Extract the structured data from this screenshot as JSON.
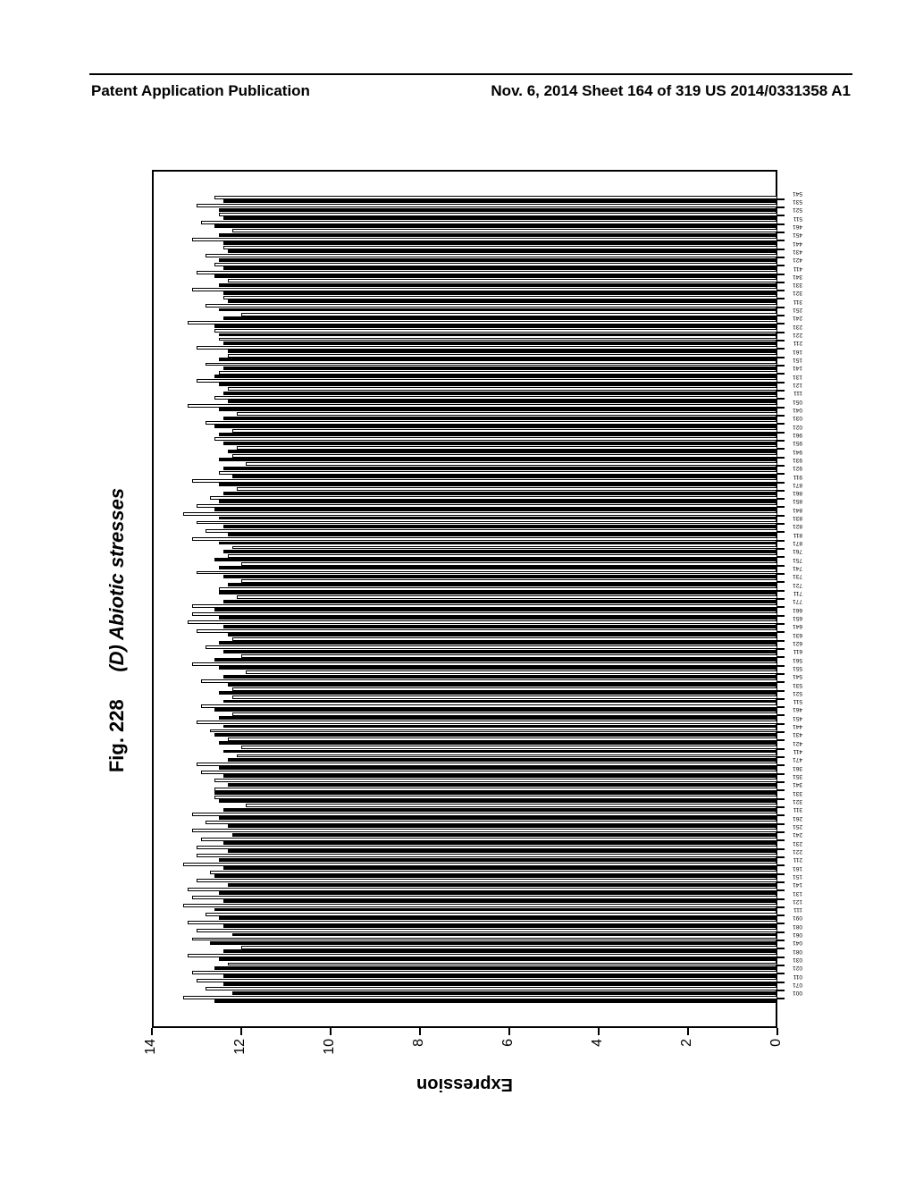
{
  "header": {
    "left": "Patent Application Publication",
    "right": "Nov. 6, 2014  Sheet 164 of 319  US 2014/0331358 A1"
  },
  "figure": {
    "number": "Fig. 228",
    "panel": "(D) Abiotic stresses"
  },
  "chart": {
    "type": "grouped-bar",
    "orientation": "vertical",
    "ylabel": "Expression",
    "ylim": [
      0,
      14
    ],
    "ytick_step": 2,
    "yticks": [
      0,
      2,
      4,
      6,
      8,
      10,
      12,
      14
    ],
    "frame_color": "#000000",
    "background_color": "#ffffff",
    "bar_solid_color": "#000000",
    "bar_hollow_fill": "#ffffff",
    "bar_hollow_stroke": "#000000",
    "bar_group_count": 97,
    "bar_label_fontsize": 6.5,
    "axis_label_fontsize": 20,
    "tick_label_fontsize": 16,
    "xlabel_prefix_base": 0,
    "bars": [
      {
        "cat": "001",
        "solid": 12.6,
        "hollow": 13.3
      },
      {
        "cat": "071",
        "solid": 12.2,
        "hollow": 12.8
      },
      {
        "cat": "011",
        "solid": 12.4,
        "hollow": 13.0
      },
      {
        "cat": "021",
        "solid": 12.4,
        "hollow": 13.1
      },
      {
        "cat": "031",
        "solid": 12.6,
        "hollow": 12.3
      },
      {
        "cat": "081",
        "solid": 12.5,
        "hollow": 13.2
      },
      {
        "cat": "041",
        "solid": 12.4,
        "hollow": 12.0
      },
      {
        "cat": "061",
        "solid": 12.7,
        "hollow": 13.1
      },
      {
        "cat": "081",
        "solid": 12.2,
        "hollow": 13.0
      },
      {
        "cat": "091",
        "solid": 12.4,
        "hollow": 13.2
      },
      {
        "cat": "111",
        "solid": 12.5,
        "hollow": 12.8
      },
      {
        "cat": "121",
        "solid": 12.6,
        "hollow": 13.3
      },
      {
        "cat": "131",
        "solid": 12.4,
        "hollow": 13.1
      },
      {
        "cat": "141",
        "solid": 12.5,
        "hollow": 13.2
      },
      {
        "cat": "151",
        "solid": 12.3,
        "hollow": 13.0
      },
      {
        "cat": "161",
        "solid": 12.6,
        "hollow": 12.7
      },
      {
        "cat": "211",
        "solid": 12.4,
        "hollow": 13.3
      },
      {
        "cat": "221",
        "solid": 12.5,
        "hollow": 13.0
      },
      {
        "cat": "231",
        "solid": 12.3,
        "hollow": 13.0
      },
      {
        "cat": "241",
        "solid": 12.4,
        "hollow": 12.9
      },
      {
        "cat": "251",
        "solid": 12.2,
        "hollow": 13.1
      },
      {
        "cat": "261",
        "solid": 12.3,
        "hollow": 12.8
      },
      {
        "cat": "311",
        "solid": 12.5,
        "hollow": 13.1
      },
      {
        "cat": "321",
        "solid": 12.4,
        "hollow": 11.9
      },
      {
        "cat": "331",
        "solid": 12.5,
        "hollow": 12.6
      },
      {
        "cat": "341",
        "solid": 12.6,
        "hollow": 12.6
      },
      {
        "cat": "351",
        "solid": 12.3,
        "hollow": 12.6
      },
      {
        "cat": "361",
        "solid": 12.4,
        "hollow": 12.9
      },
      {
        "cat": "471",
        "solid": 12.5,
        "hollow": 13.0
      },
      {
        "cat": "411",
        "solid": 12.3,
        "hollow": 12.1
      },
      {
        "cat": "421",
        "solid": 12.4,
        "hollow": 12.0
      },
      {
        "cat": "431",
        "solid": 12.5,
        "hollow": 12.3
      },
      {
        "cat": "441",
        "solid": 12.6,
        "hollow": 12.7
      },
      {
        "cat": "451",
        "solid": 12.4,
        "hollow": 13.0
      },
      {
        "cat": "461",
        "solid": 12.5,
        "hollow": 12.2
      },
      {
        "cat": "511",
        "solid": 12.6,
        "hollow": 12.9
      },
      {
        "cat": "521",
        "solid": 12.4,
        "hollow": 12.2
      },
      {
        "cat": "531",
        "solid": 12.5,
        "hollow": 12.2
      },
      {
        "cat": "541",
        "solid": 12.3,
        "hollow": 12.9
      },
      {
        "cat": "551",
        "solid": 12.4,
        "hollow": 11.9
      },
      {
        "cat": "561",
        "solid": 12.5,
        "hollow": 13.1
      },
      {
        "cat": "611",
        "solid": 12.6,
        "hollow": 12.0
      },
      {
        "cat": "621",
        "solid": 12.4,
        "hollow": 12.8
      },
      {
        "cat": "631",
        "solid": 12.5,
        "hollow": 12.2
      },
      {
        "cat": "641",
        "solid": 12.3,
        "hollow": 13.0
      },
      {
        "cat": "651",
        "solid": 12.4,
        "hollow": 13.2
      },
      {
        "cat": "661",
        "solid": 12.5,
        "hollow": 13.1
      },
      {
        "cat": "771",
        "solid": 12.6,
        "hollow": 13.1
      },
      {
        "cat": "711",
        "solid": 12.4,
        "hollow": 12.1
      },
      {
        "cat": "721",
        "solid": 12.5,
        "hollow": 12.5
      },
      {
        "cat": "731",
        "solid": 12.3,
        "hollow": 12.0
      },
      {
        "cat": "741",
        "solid": 12.4,
        "hollow": 13.0
      },
      {
        "cat": "751",
        "solid": 12.5,
        "hollow": 12.0
      },
      {
        "cat": "761",
        "solid": 12.6,
        "hollow": 12.3
      },
      {
        "cat": "871",
        "solid": 12.4,
        "hollow": 12.2
      },
      {
        "cat": "811",
        "solid": 12.5,
        "hollow": 13.1
      },
      {
        "cat": "821",
        "solid": 12.3,
        "hollow": 12.8
      },
      {
        "cat": "831",
        "solid": 12.4,
        "hollow": 13.0
      },
      {
        "cat": "841",
        "solid": 12.5,
        "hollow": 13.3
      },
      {
        "cat": "851",
        "solid": 12.6,
        "hollow": 13.0
      },
      {
        "cat": "861",
        "solid": 12.5,
        "hollow": 12.7
      },
      {
        "cat": "871",
        "solid": 12.4,
        "hollow": 12.1
      },
      {
        "cat": "911",
        "solid": 12.5,
        "hollow": 13.1
      },
      {
        "cat": "921",
        "solid": 12.2,
        "hollow": 12.5
      },
      {
        "cat": "931",
        "solid": 12.4,
        "hollow": 11.9
      },
      {
        "cat": "941",
        "solid": 12.5,
        "hollow": 12.2
      },
      {
        "cat": "951",
        "solid": 12.3,
        "hollow": 12.1
      },
      {
        "cat": "961",
        "solid": 12.4,
        "hollow": 12.6
      },
      {
        "cat": "021",
        "solid": 12.5,
        "hollow": 12.2
      },
      {
        "cat": "031",
        "solid": 12.6,
        "hollow": 12.8
      },
      {
        "cat": "041",
        "solid": 12.4,
        "hollow": 12.1
      },
      {
        "cat": "051",
        "solid": 12.5,
        "hollow": 13.2
      },
      {
        "cat": "111",
        "solid": 12.3,
        "hollow": 12.6
      },
      {
        "cat": "121",
        "solid": 12.4,
        "hollow": 12.3
      },
      {
        "cat": "131",
        "solid": 12.5,
        "hollow": 13.0
      },
      {
        "cat": "141",
        "solid": 12.6,
        "hollow": 12.5
      },
      {
        "cat": "151",
        "solid": 12.4,
        "hollow": 12.8
      },
      {
        "cat": "161",
        "solid": 12.5,
        "hollow": 12.3
      },
      {
        "cat": "211",
        "solid": 12.3,
        "hollow": 13.0
      },
      {
        "cat": "221",
        "solid": 12.4,
        "hollow": 12.5
      },
      {
        "cat": "231",
        "solid": 12.5,
        "hollow": 12.6
      },
      {
        "cat": "241",
        "solid": 12.6,
        "hollow": 13.2
      },
      {
        "cat": "251",
        "solid": 12.4,
        "hollow": 12.0
      },
      {
        "cat": "311",
        "solid": 12.5,
        "hollow": 12.8
      },
      {
        "cat": "321",
        "solid": 12.3,
        "hollow": 12.4
      },
      {
        "cat": "331",
        "solid": 12.4,
        "hollow": 13.1
      },
      {
        "cat": "341",
        "solid": 12.5,
        "hollow": 12.3
      },
      {
        "cat": "411",
        "solid": 12.6,
        "hollow": 13.0
      },
      {
        "cat": "421",
        "solid": 12.4,
        "hollow": 12.6
      },
      {
        "cat": "431",
        "solid": 12.5,
        "hollow": 12.8
      },
      {
        "cat": "441",
        "solid": 12.3,
        "hollow": 12.4
      },
      {
        "cat": "451",
        "solid": 12.4,
        "hollow": 13.1
      },
      {
        "cat": "461",
        "solid": 12.5,
        "hollow": 12.2
      },
      {
        "cat": "511",
        "solid": 12.6,
        "hollow": 12.9
      },
      {
        "cat": "521",
        "solid": 12.4,
        "hollow": 12.5
      },
      {
        "cat": "531",
        "solid": 12.5,
        "hollow": 13.0
      },
      {
        "cat": "541",
        "solid": 12.4,
        "hollow": 12.6
      }
    ]
  }
}
